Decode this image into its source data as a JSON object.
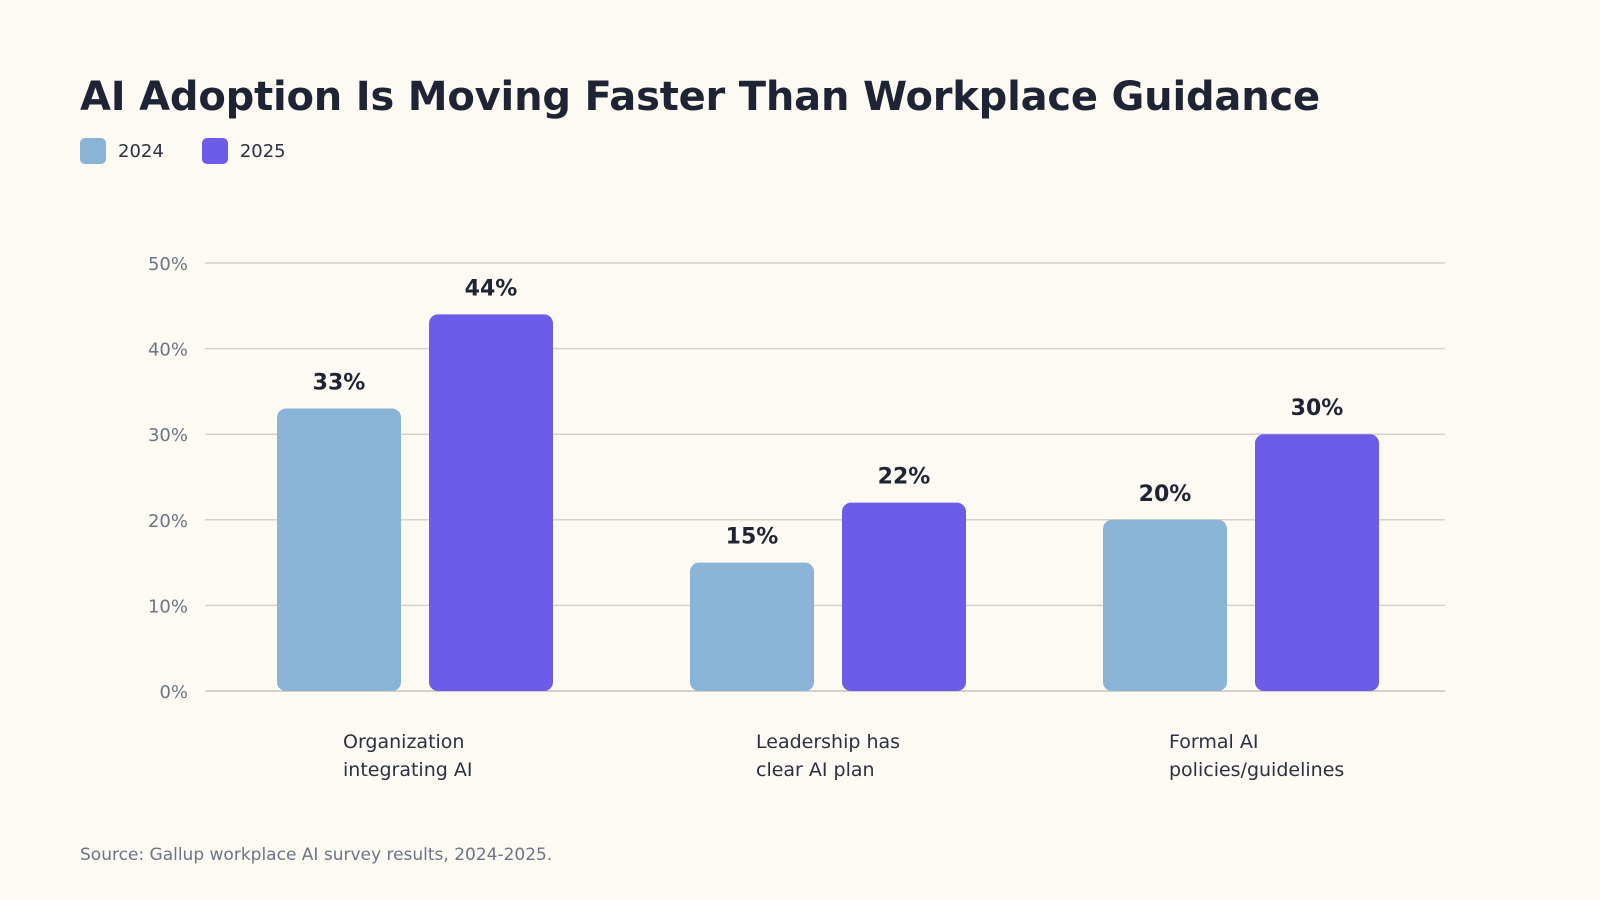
{
  "chart_data": {
    "type": "bar",
    "title": "AI Adoption Is Moving Faster Than Workplace Guidance",
    "categories": [
      [
        "Organization",
        "integrating AI"
      ],
      [
        "Leadership has",
        "clear AI plan"
      ],
      [
        "Formal AI",
        "policies/guidelines"
      ]
    ],
    "series": [
      {
        "name": "2024",
        "color": "#8ab4d5",
        "values": [
          33,
          15,
          20
        ]
      },
      {
        "name": "2025",
        "color": "#6d5ce8",
        "values": [
          44,
          22,
          30
        ]
      }
    ],
    "ylim": [
      0,
      50
    ],
    "yticks": [
      "0%",
      "10%",
      "20%",
      "30%",
      "40%",
      "50%"
    ],
    "data_labels": [
      [
        "33%",
        "15%",
        "20%"
      ],
      [
        "44%",
        "22%",
        "30%"
      ]
    ],
    "grid": true,
    "legend_position": "top-left",
    "source": "Source: Gallup workplace AI survey results, 2024-2025."
  }
}
